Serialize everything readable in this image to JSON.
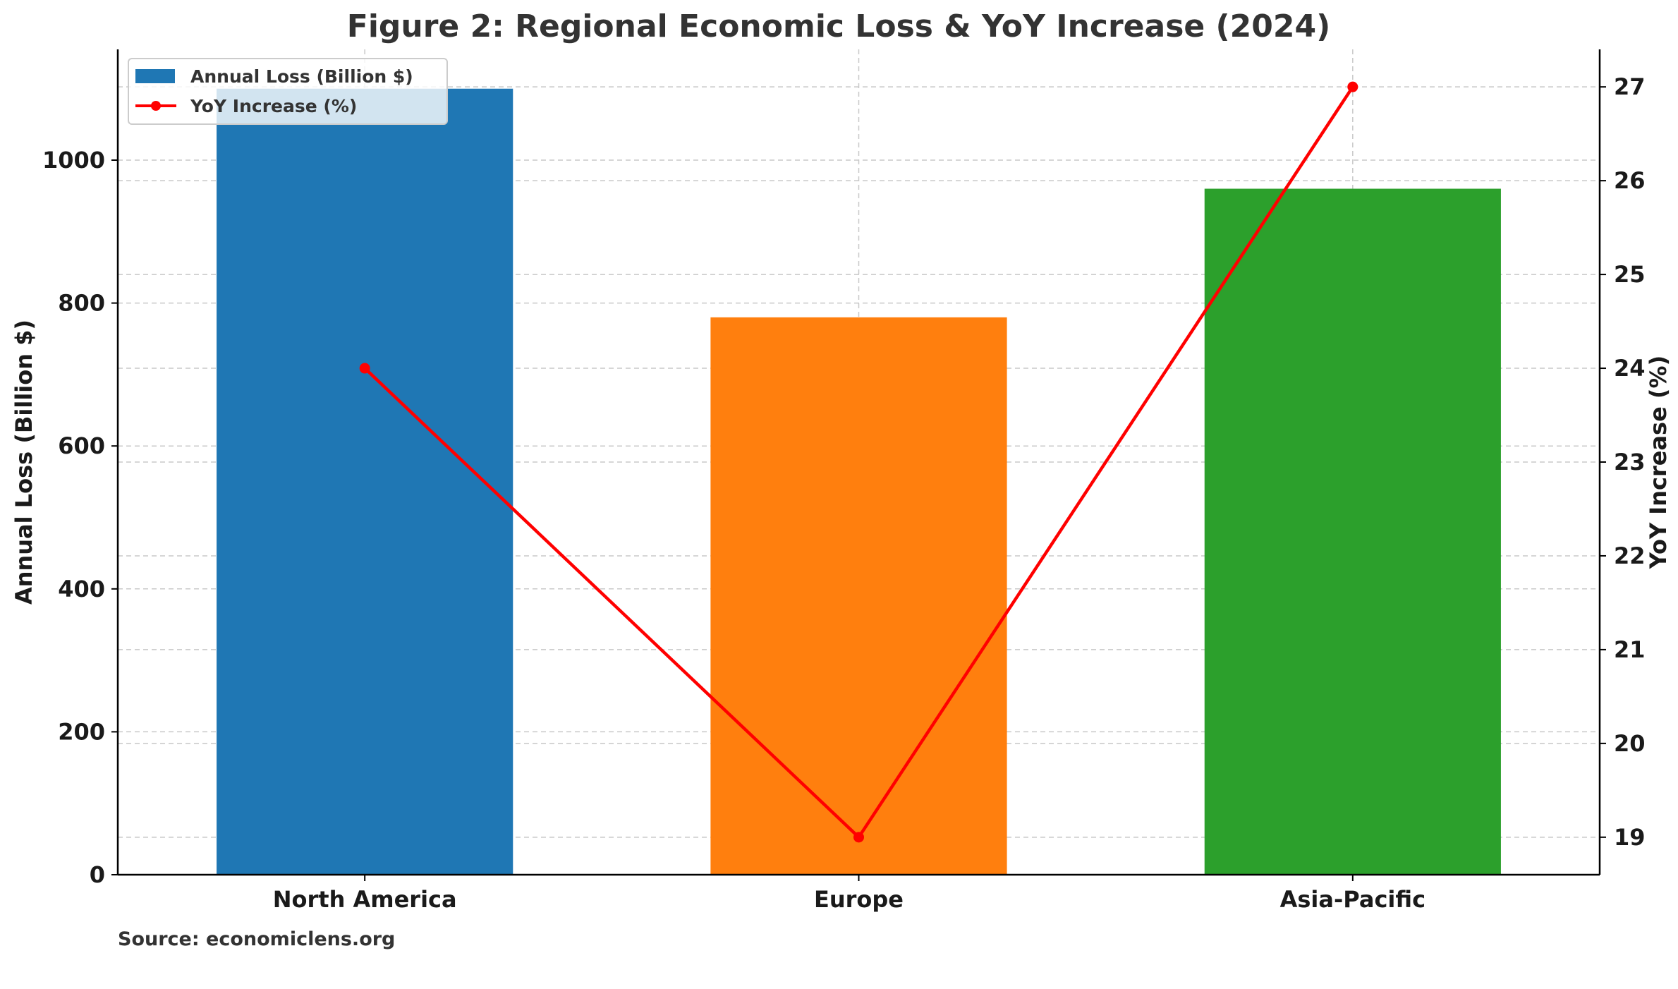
{
  "chart_data": {
    "type": "bar",
    "title": "Figure 2: Regional Economic Loss & YoY Increase (2024)",
    "categories": [
      "North America",
      "Europe",
      "Asia-Pacific"
    ],
    "series": [
      {
        "name": "Annual Loss (Billion $)",
        "axis": "left",
        "type": "bar",
        "values": [
          1100,
          780,
          960
        ],
        "colors": [
          "#1f77b4",
          "#ff7f0e",
          "#2ca02c"
        ]
      },
      {
        "name": "YoY Increase (%)",
        "axis": "right",
        "type": "line",
        "values": [
          24,
          19,
          27
        ],
        "color": "#ff0000"
      }
    ],
    "ylabel": "Annual Loss (Billion $)",
    "ylabel_right": "YoY Increase (%)",
    "ylim": [
      0,
      1155
    ],
    "ylim_right": [
      18.6,
      27.4
    ],
    "yticks": [
      0,
      200,
      400,
      600,
      800,
      1000
    ],
    "yticks_right": [
      19,
      20,
      21,
      22,
      23,
      24,
      25,
      26,
      27
    ],
    "grid": true,
    "legend_position": "top-left"
  },
  "source": "Source: economiclens.org"
}
